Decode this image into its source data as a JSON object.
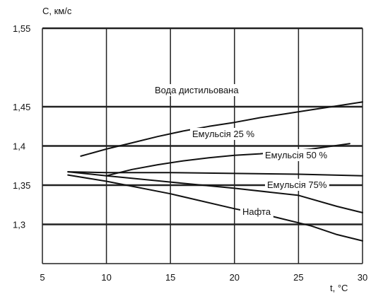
{
  "chart_data": {
    "type": "line",
    "ylabel": "С, км/с",
    "xlabel": "t, °C",
    "xlim": [
      5,
      30
    ],
    "ylim": [
      1.25,
      1.55
    ],
    "x_ticks": [
      5,
      10,
      15,
      20,
      25,
      30
    ],
    "y_ticks": [
      1.3,
      1.35,
      1.4,
      1.45,
      1.55
    ],
    "y_tick_labels": [
      "1,3",
      "1,35",
      "1,4",
      "1,45",
      "1,55"
    ],
    "grid": true,
    "series": [
      {
        "name": "Вода дистильована",
        "x": [
          8,
          10,
          12,
          14,
          16,
          18,
          20,
          22,
          24,
          26,
          28,
          30
        ],
        "y": [
          1.387,
          1.396,
          1.404,
          1.412,
          1.419,
          1.425,
          1.43,
          1.436,
          1.441,
          1.446,
          1.451,
          1.456
        ]
      },
      {
        "name": "Емульсія 25 %",
        "x": [
          10,
          12,
          14,
          16,
          18,
          20,
          22,
          24,
          26,
          29
        ],
        "y": [
          1.362,
          1.37,
          1.376,
          1.381,
          1.385,
          1.388,
          1.39,
          1.393,
          1.396,
          1.403
        ]
      },
      {
        "name": "Емульсія 50 %",
        "x": [
          7,
          10,
          15,
          20,
          25,
          30
        ],
        "y": [
          1.367,
          1.366,
          1.366,
          1.365,
          1.364,
          1.362
        ]
      },
      {
        "name": "Емульсія 75%",
        "x": [
          7,
          10,
          15,
          20,
          25,
          28,
          30
        ],
        "y": [
          1.367,
          1.362,
          1.354,
          1.346,
          1.337,
          1.323,
          1.315
        ]
      },
      {
        "name": "Нафта",
        "x": [
          7,
          10,
          15,
          20,
          23,
          26,
          28,
          30
        ],
        "y": [
          1.363,
          1.355,
          1.339,
          1.32,
          1.31,
          1.298,
          1.287,
          1.279
        ]
      }
    ]
  }
}
